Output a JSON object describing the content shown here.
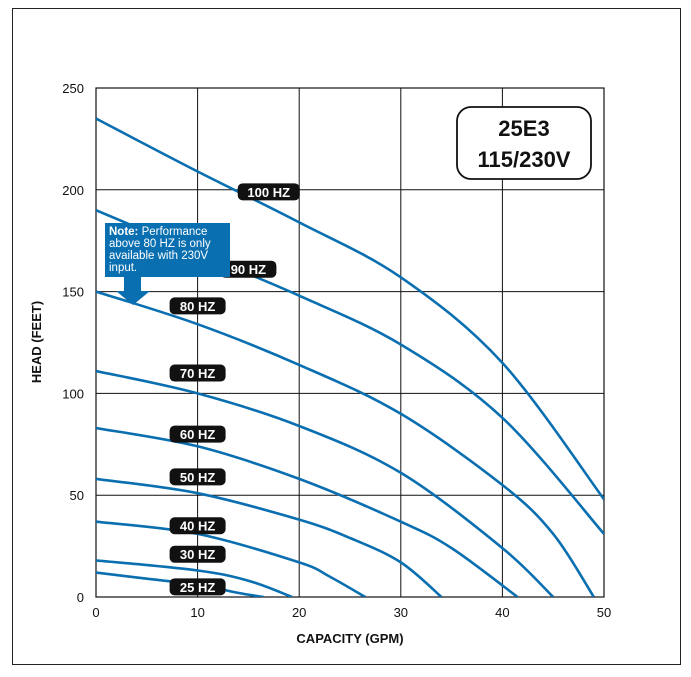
{
  "chart_data": {
    "type": "line",
    "title": "",
    "xlabel": "CAPACITY (GPM)",
    "ylabel": "HEAD (FEET)",
    "xlim": [
      0,
      50
    ],
    "ylim": [
      0,
      250
    ],
    "x_ticks": [
      "0",
      "10",
      "20",
      "30",
      "40",
      "50"
    ],
    "y_ticks": [
      "0",
      "50",
      "100",
      "150",
      "200",
      "250"
    ],
    "grid": true,
    "line_color": "#0a6fb0",
    "model_box": {
      "line1": "25E3",
      "line2": "115/230V"
    },
    "note": {
      "bold": "Note:",
      "lines": [
        "Performance",
        "above 80 HZ is only",
        "available with 230V",
        "input."
      ],
      "color": "#0a6fb0"
    },
    "series": [
      {
        "name": "100 HZ",
        "x": [
          0,
          10,
          20,
          30,
          40,
          50
        ],
        "y": [
          235,
          209,
          184,
          157,
          115,
          48
        ]
      },
      {
        "name": "90 HZ",
        "x": [
          0,
          10,
          20,
          30,
          40,
          50
        ],
        "y": [
          190,
          169,
          148,
          124,
          88,
          31
        ]
      },
      {
        "name": "80 HZ",
        "x": [
          0,
          10,
          20,
          30,
          40,
          45,
          49
        ],
        "y": [
          150,
          134,
          114,
          90,
          55,
          31,
          0
        ]
      },
      {
        "name": "70 HZ",
        "x": [
          0,
          10,
          20,
          30,
          40,
          45
        ],
        "y": [
          111,
          100,
          84,
          61,
          24,
          0
        ]
      },
      {
        "name": "60 HZ",
        "x": [
          0,
          10,
          20,
          30,
          35,
          41.5
        ],
        "y": [
          83,
          74,
          58,
          37,
          24,
          0
        ]
      },
      {
        "name": "50 HZ",
        "x": [
          0,
          10,
          20,
          25,
          30,
          34
        ],
        "y": [
          58,
          51,
          38,
          29,
          17,
          0
        ]
      },
      {
        "name": "40 HZ",
        "x": [
          0,
          10,
          20,
          23,
          26.5
        ],
        "y": [
          37,
          31,
          17,
          10,
          0
        ]
      },
      {
        "name": "30 HZ",
        "x": [
          0,
          10,
          15,
          19.3
        ],
        "y": [
          18,
          13,
          8,
          0
        ]
      },
      {
        "name": "25 HZ",
        "x": [
          0,
          5,
          10,
          14,
          16.5
        ],
        "y": [
          12,
          9,
          6,
          2,
          0
        ]
      }
    ]
  }
}
